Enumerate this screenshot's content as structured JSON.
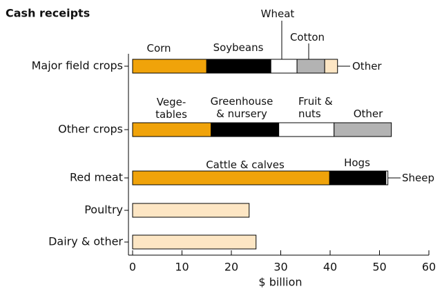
{
  "chart_data": {
    "type": "bar",
    "orientation": "horizontal",
    "stacked": true,
    "title": "Cash receipts",
    "xlabel": "$ billion",
    "xlim": [
      0,
      60
    ],
    "xticks": [
      0,
      10,
      20,
      30,
      40,
      50,
      60
    ],
    "bars": [
      {
        "category": "Major field crops",
        "segments": [
          {
            "name": "Corn",
            "value": 15.0,
            "color": "#f0a30a"
          },
          {
            "name": "Soybeans",
            "value": 13.0,
            "color": "#000000"
          },
          {
            "name": "Wheat",
            "value": 5.3,
            "color": "#ffffff"
          },
          {
            "name": "Cotton",
            "value": 5.6,
            "color": "#b3b3b3"
          },
          {
            "name": "Other",
            "value": 2.6,
            "color": "#fde6c4"
          }
        ]
      },
      {
        "category": "Other crops",
        "segments": [
          {
            "name": "Vege-\ntables",
            "value": 15.9,
            "color": "#f0a30a"
          },
          {
            "name": "Greenhouse\n& nursery",
            "value": 13.7,
            "color": "#000000"
          },
          {
            "name": "Fruit &\nnuts",
            "value": 11.2,
            "color": "#ffffff"
          },
          {
            "name": "Other",
            "value": 11.6,
            "color": "#b3b3b3"
          }
        ]
      },
      {
        "category": "Red meat",
        "segments": [
          {
            "name": "Cattle & calves",
            "value": 39.9,
            "color": "#f0a30a"
          },
          {
            "name": "Hogs",
            "value": 11.4,
            "color": "#000000"
          },
          {
            "name": "Sheep",
            "value": 0.4,
            "color": "#ffffff"
          }
        ]
      },
      {
        "category": "Poultry",
        "segments": [
          {
            "value": 23.6,
            "color": "#fde6c4"
          }
        ]
      },
      {
        "category": "Dairy & other",
        "segments": [
          {
            "value": 25.0,
            "color": "#fde6c4"
          }
        ]
      }
    ]
  }
}
